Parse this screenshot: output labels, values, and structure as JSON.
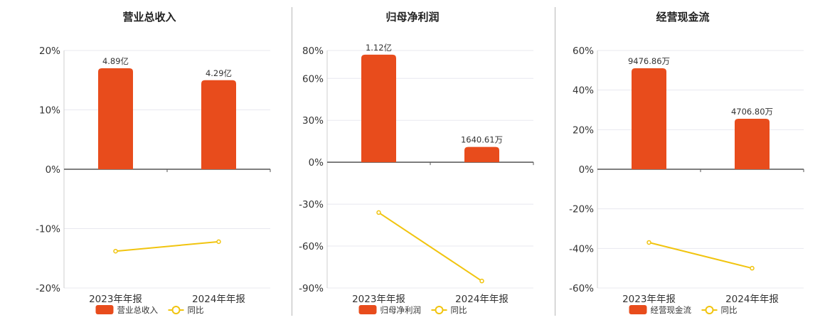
{
  "colors": {
    "bar": "#E84C1C",
    "line": "#F1C40F",
    "grid": "#e8e8ef",
    "axis": "#555555"
  },
  "chart_data": [
    {
      "type": "bar",
      "title": "营业总收入",
      "categories": [
        "2023年年报",
        "2024年年报"
      ],
      "yticks": [
        "20%",
        "10%",
        "0%",
        "-10%",
        "-20%"
      ],
      "ylim": [
        -20,
        20
      ],
      "series": [
        {
          "name": "营业总收入",
          "type": "bar",
          "values": [
            17,
            15
          ],
          "labels": [
            "4.89亿",
            "4.29亿"
          ]
        },
        {
          "name": "同比",
          "type": "line",
          "values": [
            -13.8,
            -12.2
          ]
        }
      ],
      "legend_position": "bottom"
    },
    {
      "type": "bar",
      "title": "归母净利润",
      "categories": [
        "2023年年报",
        "2024年年报"
      ],
      "yticks": [
        "80%",
        "60%",
        "30%",
        "0%",
        "-30%",
        "-60%",
        "-90%"
      ],
      "ylim": [
        -90,
        80
      ],
      "series": [
        {
          "name": "归母净利润",
          "type": "bar",
          "values": [
            77,
            11
          ],
          "labels": [
            "1.12亿",
            "1640.61万"
          ]
        },
        {
          "name": "同比",
          "type": "line",
          "values": [
            -36,
            -85
          ]
        }
      ],
      "legend_position": "bottom"
    },
    {
      "type": "bar",
      "title": "经营现金流",
      "categories": [
        "2023年年报",
        "2024年年报"
      ],
      "yticks": [
        "60%",
        "40%",
        "20%",
        "0%",
        "-20%",
        "-40%",
        "-60%"
      ],
      "ylim": [
        -60,
        60
      ],
      "series": [
        {
          "name": "经营现金流",
          "type": "bar",
          "values": [
            51,
            25.5
          ],
          "labels": [
            "9476.86万",
            "4706.80万"
          ]
        },
        {
          "name": "同比",
          "type": "line",
          "values": [
            -37,
            -50
          ]
        }
      ],
      "legend_position": "bottom"
    }
  ]
}
